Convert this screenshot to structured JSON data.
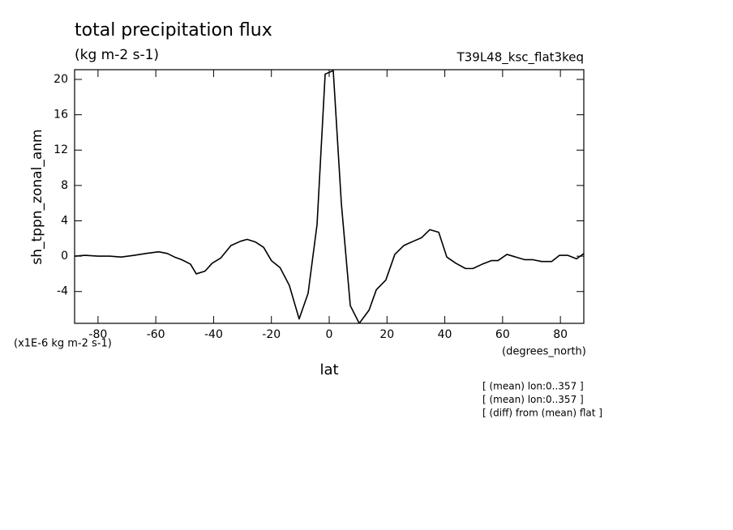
{
  "chart_data": {
    "type": "line",
    "title": "total precipitation flux",
    "subtitle": "(kg m-2 s-1)",
    "dataset": "T39L48_ksc_flat3keq",
    "ylabel": "sh_tppn_zonal_anm",
    "xlabel": "lat",
    "y_multiplier_label": "(x1E-6 kg m-2 s-1)",
    "x_units": "(degrees_north)",
    "annotations": [
      "[ (mean) lon:0..357 ]",
      "[ (mean) lon:0..357 ]",
      "[ (diff) from (mean) flat ]"
    ],
    "color": "#000000",
    "x": [
      -88.1,
      -84.5,
      -80,
      -76,
      -72,
      -67.5,
      -63.5,
      -59,
      -56,
      -53.5,
      -51,
      -48,
      -46,
      -43,
      -40.5,
      -37.5,
      -34,
      -30.6,
      -28.4,
      -25.5,
      -22.7,
      -20,
      -17,
      -13.8,
      -10.4,
      -7.3,
      -4.2,
      -1.4,
      1.4,
      4.2,
      7.3,
      10.4,
      13.8,
      16.3,
      19.6,
      22.7,
      25.8,
      29.2,
      32,
      34.8,
      37.9,
      40.7,
      43.8,
      47.2,
      49.7,
      53,
      56.1,
      58.4,
      61.5,
      64.6,
      67.7,
      70.5,
      73.5,
      77,
      79.7,
      82.5,
      85.6,
      88.1
    ],
    "values": [
      0,
      0.1,
      0,
      0,
      -0.1,
      0.1,
      0.3,
      0.5,
      0.3,
      -0.1,
      -0.4,
      -0.9,
      -2.0,
      -1.7,
      -0.8,
      -0.2,
      1.2,
      1.7,
      1.9,
      1.6,
      1.0,
      -0.5,
      -1.3,
      -3.3,
      -7.1,
      -4.2,
      3.6,
      20.6,
      21.0,
      6.0,
      -5.6,
      -7.6,
      -6.1,
      -3.8,
      -2.7,
      0.2,
      1.2,
      1.7,
      2.1,
      3.0,
      2.7,
      -0.1,
      -0.8,
      -1.4,
      -1.4,
      -0.9,
      -0.5,
      -0.5,
      0.2,
      -0.1,
      -0.4,
      -0.4,
      -0.6,
      -0.6,
      0.1,
      0.1,
      -0.3,
      0.3
    ],
    "xlim": [
      -88.1,
      88.1
    ],
    "ylim": [
      -7.6,
      21.1
    ],
    "xticks": [
      -80,
      -60,
      -40,
      -20,
      0,
      20,
      40,
      60,
      80
    ],
    "yticks": [
      -4,
      0,
      4,
      8,
      12,
      16,
      20
    ]
  }
}
